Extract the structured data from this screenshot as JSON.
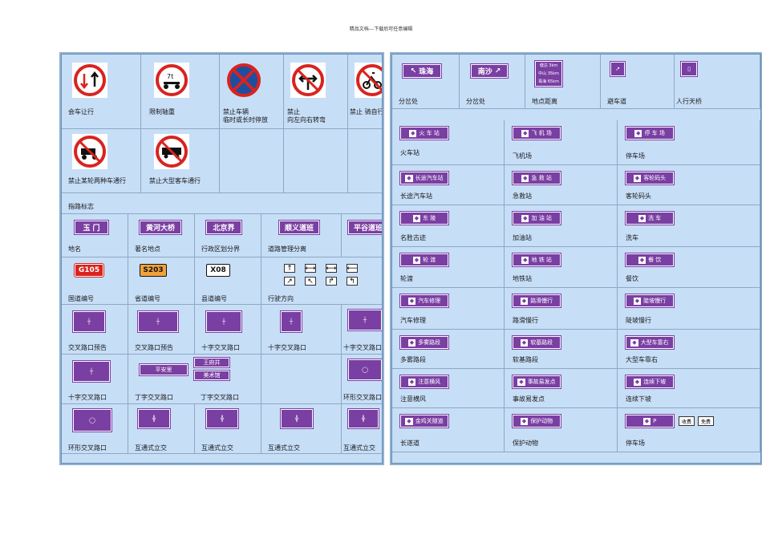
{
  "header": {
    "text": "精品文档---下载后可任意编辑"
  },
  "left": {
    "row1": {
      "labels": [
        "会车让行",
        "限制轴重",
        "禁止车辆\n临时或长时停放",
        "禁止\n向左向右转弯",
        "禁止 骑自行车下坡"
      ],
      "sign_text": {
        "axle": "7t"
      }
    },
    "row2": {
      "labels": [
        "禁止某轮两种车通行",
        "禁止大型客车通行"
      ]
    },
    "section_title": "指路标志",
    "row3": {
      "signs": [
        "玉 门",
        "黄河大桥",
        "北京界",
        "顺义道班",
        "平谷道班"
      ],
      "labels": [
        "地名",
        "著名地点",
        "行政区划分界",
        "道路管理分离"
      ]
    },
    "row4": {
      "codes": [
        "G105",
        "S203",
        "X08"
      ],
      "labels": [
        "国道编号",
        "省道编号",
        "县道编号",
        "行驶方向"
      ],
      "arrows": [
        "↑",
        "⟷",
        "⟷",
        "⟵",
        "↗",
        "↖",
        "↱",
        "↰"
      ]
    },
    "row5": {
      "labels": [
        "交叉路口预告",
        "交叉路口预告",
        "十字交叉路口",
        "十字交叉路口",
        "十字交叉路口"
      ]
    },
    "row6": {
      "labels": [
        "十字交叉路口",
        "丁字交叉路口",
        "丁字交叉路口",
        "环形交叉路口"
      ],
      "sign_a": [
        "王府井",
        "平安里",
        "美术馆"
      ]
    },
    "row7": {
      "labels": [
        "环形交叉路口",
        "互通式立交",
        "互通式立交",
        "互通式立交",
        "互通式立交"
      ]
    }
  },
  "right": {
    "top": {
      "signs": [
        "珠海",
        "南沙"
      ],
      "distance": [
        "塘沽 3km",
        "中山 35km",
        "珠海 65km"
      ],
      "labels": [
        "分岔处",
        "分岔处",
        "地点距离",
        "避车道",
        "人行天桥"
      ]
    },
    "grid": [
      [
        {
          "sign": "火 车 站",
          "label": "火车站"
        },
        {
          "sign": "飞 机 场",
          "label": "飞机场"
        },
        {
          "sign": "停 车 场",
          "label": "停车场"
        }
      ],
      [
        {
          "sign": "长途汽车站",
          "label": "长途汽车站"
        },
        {
          "sign": "急 救 站",
          "label": "急救站"
        },
        {
          "sign": "客轮码头",
          "label": "客轮码头"
        }
      ],
      [
        {
          "sign": "东 陵",
          "label": "名胜古迹"
        },
        {
          "sign": "加 油 站",
          "label": "加油站"
        },
        {
          "sign": "洗 车",
          "label": "洗车"
        }
      ],
      [
        {
          "sign": "轮 渡",
          "label": "轮渡"
        },
        {
          "sign": "地 铁 站",
          "label": "地铁站"
        },
        {
          "sign": "餐 饮",
          "label": "餐饮"
        }
      ],
      [
        {
          "sign": "汽车修理",
          "label": "汽车修理"
        },
        {
          "sign": "路滑慢行",
          "label": "路滑慢行"
        },
        {
          "sign": "陡坡慢行",
          "label": "陡坡慢行"
        }
      ],
      [
        {
          "sign": "多雾路段",
          "label": "多雾路段"
        },
        {
          "sign": "软基路段",
          "label": "软基路段"
        },
        {
          "sign": "大型车靠右",
          "label": "大型车靠右"
        }
      ],
      [
        {
          "sign": "注意横风",
          "label": "注意横风"
        },
        {
          "sign": "事故易发点",
          "label": "事故易发点"
        },
        {
          "sign": "连续下坡",
          "label": "连续下坡"
        }
      ],
      [
        {
          "sign": "金鸡关隧道",
          "label": "长遂道"
        },
        {
          "sign": "保护动物",
          "label": "保护动物"
        },
        {
          "sign": "P",
          "label": "停车场"
        }
      ]
    ],
    "parking_tags": [
      "收费",
      "免费"
    ]
  },
  "colors": {
    "sheet_bg": "#c7def7",
    "sign_purple": "#7a3fa3",
    "prohibit_red": "#d9231f",
    "warn_blue": "#1c4fa0"
  }
}
